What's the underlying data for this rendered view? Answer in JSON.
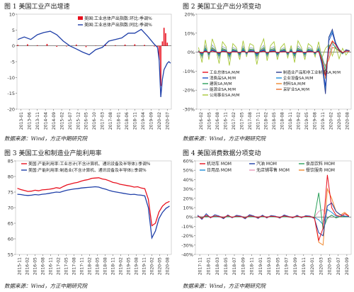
{
  "chart_data": [
    {
      "type": "bar",
      "title": "图 1   美国工业产出增速",
      "source": "数据来源：Wind，方正中期研究院",
      "ylim": [
        -20,
        10
      ],
      "yticks": [
        -20,
        -15,
        -10,
        -5,
        0,
        5,
        10
      ],
      "xtick_labels": [
        "2013-01",
        "2013-06",
        "2013-11",
        "2014-04",
        "2014-09",
        "2015-02",
        "2015-07",
        "2015-12",
        "2016-05",
        "2016-10",
        "2017-03",
        "2017-08",
        "2018-01",
        "2018-06",
        "2018-11",
        "2019-04",
        "2019-09",
        "2020-02",
        "2020-07"
      ],
      "legend": [
        "美国:工业总体产出指数:环比:季调%",
        "美国:工业总体产出指数:同比:季调%"
      ],
      "colors": {
        "bar": "#e8101e",
        "line": "#1f3fa8"
      },
      "series": [
        {
          "name": "美国:工业总体产出指数:环比:季调%",
          "kind": "bar",
          "x": [
            0,
            6,
            12,
            18,
            24,
            30,
            36,
            42,
            48,
            54,
            60,
            66,
            72,
            78,
            84,
            86,
            87,
            88,
            89,
            90,
            91,
            92
          ],
          "values": [
            0.3,
            0.5,
            0.2,
            0.6,
            -0.3,
            -0.2,
            0.4,
            -0.4,
            0.1,
            0.3,
            0.2,
            0.4,
            0.5,
            0.3,
            -0.2,
            -0.3,
            -4.5,
            -12.7,
            1.4,
            5.7,
            4.0,
            1.0
          ]
        },
        {
          "name": "美国:工业总体产出指数:同比:季调%",
          "kind": "line",
          "x": [
            0,
            4,
            8,
            12,
            16,
            20,
            24,
            28,
            32,
            36,
            40,
            44,
            48,
            52,
            56,
            60,
            64,
            68,
            72,
            76,
            80,
            84,
            86,
            87,
            88,
            89,
            90,
            91,
            92,
            93,
            94
          ],
          "values": [
            2.0,
            2.8,
            2.0,
            3.5,
            4.2,
            4.6,
            3.5,
            1.5,
            0.0,
            -1.0,
            -2.0,
            -2.8,
            -1.2,
            -0.5,
            1.5,
            2.0,
            2.5,
            4.0,
            4.0,
            5.2,
            3.0,
            0.5,
            -0.5,
            -4.5,
            -16.2,
            -10.5,
            -7.5,
            -6.5,
            -5.5,
            -5.0,
            -5.5
          ]
        }
      ]
    },
    {
      "type": "line",
      "title": "图 2   美国工业产出分项变动",
      "source": "数据来源：Wind，方正中期研究院",
      "ylim": [
        -30,
        20
      ],
      "yticks": [
        "20%",
        "10%",
        "0%",
        "-10%",
        "-20%",
        "-30%"
      ],
      "xtick_labels": [
        "2016-02",
        "2016-05",
        "2016-08",
        "2016-11",
        "2017-02",
        "2017-05",
        "2017-08",
        "2017-11",
        "2018-02",
        "2018-05",
        "2018-08",
        "2018-11",
        "2019-02",
        "2019-05",
        "2019-08",
        "2019-11",
        "2020-02",
        "2020-05",
        "2020-08"
      ],
      "legend": [
        "工业总体SA,M/M",
        "制造业产品和非工业制造SA,M/M",
        "消费品SA,M/M",
        "企业设备SA,M/M",
        "建筑SA,M/M",
        "材料SA,M/M",
        "能源业SA,M/M",
        "采矿业SA,M/M",
        "公用事业SA,M/M"
      ],
      "series": [
        {
          "name": "工业总体SA,M/M",
          "color": "#e8101e",
          "values": [
            0.3,
            -0.4,
            0.5,
            -0.2,
            0.6,
            0.1,
            -0.3,
            0.4,
            0.2,
            -0.5,
            0.3,
            0.1,
            -0.2,
            0.4,
            -0.1,
            0.2,
            0.3,
            -0.4,
            0.1,
            0.5,
            -0.3,
            0.2,
            0.4,
            -0.2,
            0.1,
            0.3,
            -0.1,
            0.2,
            -0.3,
            0.4,
            0.1,
            -0.2,
            0.3,
            0.2,
            -0.1,
            0.4,
            -4.5,
            -12.5,
            1.4,
            5.7,
            3.9,
            1.0,
            -0.3,
            0.6,
            0.5
          ]
        },
        {
          "name": "制造业产品和非工业制造SA,M/M",
          "color": "#2b3b8f",
          "values": [
            0.2,
            -0.6,
            0.8,
            -0.4,
            0.9,
            0.2,
            -0.7,
            0.6,
            0.3,
            -0.9,
            0.5,
            0.2,
            -0.4,
            0.7,
            -0.2,
            0.5,
            0.4,
            -0.8,
            0.2,
            0.9,
            -0.5,
            0.4,
            0.6,
            -0.4,
            0.2,
            0.5,
            -0.3,
            0.4,
            -0.6,
            0.7,
            0.2,
            -0.4,
            0.5,
            0.3,
            -0.2,
            0.6,
            -6.0,
            -22.0,
            8.0,
            12.0,
            4.5,
            1.5,
            -0.5,
            1.0,
            0.8
          ]
        },
        {
          "name": "消费品SA,M/M",
          "color": "#1a4fc8",
          "values": [
            0.4,
            -0.8,
            1.0,
            -0.6,
            1.1,
            0.4,
            -0.9,
            0.8,
            0.5,
            -1.1,
            0.7,
            0.4,
            -0.6,
            0.9,
            -0.4,
            0.7,
            0.6,
            -1.0,
            0.4,
            1.1,
            -0.7,
            0.6,
            0.8,
            -0.6,
            0.4,
            0.7,
            -0.5,
            0.6,
            -0.8,
            0.9,
            0.4,
            -0.6,
            0.7,
            0.5,
            -0.4,
            0.8,
            -5.0,
            -18.0,
            6.0,
            10.0,
            4.0,
            1.0,
            -0.4,
            0.8,
            0.6
          ]
        },
        {
          "name": "企业设备SA,M/M",
          "color": "#1f8fd8",
          "values": [
            0.5,
            -1.2,
            1.4,
            -0.8,
            1.5,
            0.6,
            -1.3,
            1.2,
            0.7,
            -1.5,
            1.0,
            0.6,
            -0.9,
            1.3,
            -0.6,
            1.0,
            0.9,
            -1.4,
            0.6,
            1.5,
            -1.0,
            0.9,
            1.2,
            -0.9,
            0.6,
            1.0,
            -0.7,
            0.9,
            -1.2,
            1.3,
            0.6,
            -0.9,
            1.0,
            0.8,
            -0.6,
            1.2,
            -7.0,
            -20.0,
            7.5,
            11.0,
            5.0,
            1.2,
            -0.6,
            0.9,
            0.7
          ]
        },
        {
          "name": "建筑SA,M/M",
          "color": "#2aa05a",
          "values": [
            0.8,
            -2.0,
            2.2,
            -1.5,
            2.4,
            1.0,
            -2.1,
            1.9,
            1.2,
            -2.4,
            1.6,
            1.0,
            -1.5,
            2.1,
            -1.0,
            1.6,
            1.4,
            -2.2,
            1.0,
            2.4,
            -1.6,
            1.4,
            1.9,
            -1.5,
            1.0,
            1.6,
            -1.2,
            1.4,
            -2.0,
            2.1,
            1.0,
            -1.5,
            1.6,
            1.2,
            -1.0,
            1.9,
            -3.0,
            -10.0,
            3.0,
            5.0,
            2.0,
            0.8,
            -0.8,
            1.0,
            0.6
          ]
        },
        {
          "name": "材料SA,M/M",
          "color": "#f08a30",
          "values": [
            0.3,
            -0.5,
            0.6,
            -0.3,
            0.7,
            0.2,
            -0.5,
            0.5,
            0.3,
            -0.6,
            0.4,
            0.2,
            -0.3,
            0.5,
            -0.2,
            0.4,
            0.3,
            -0.5,
            0.2,
            0.6,
            -0.4,
            0.3,
            0.5,
            -0.3,
            0.2,
            0.4,
            -0.2,
            0.3,
            -0.5,
            0.5,
            0.2,
            -0.3,
            0.4,
            0.3,
            -0.2,
            0.5,
            -4.0,
            -14.0,
            2.0,
            6.0,
            4.0,
            1.5,
            -0.3,
            0.7,
            0.5
          ]
        },
        {
          "name": "能源业SA,M/M",
          "color": "#9aa8c8",
          "values": [
            1.0,
            -3.0,
            3.5,
            -2.5,
            3.8,
            1.5,
            -3.2,
            3.0,
            2.0,
            -3.6,
            2.5,
            1.6,
            -2.3,
            3.2,
            -1.6,
            2.4,
            2.1,
            -3.4,
            1.5,
            3.6,
            -2.4,
            2.1,
            2.9,
            -2.3,
            1.5,
            2.4,
            -1.8,
            2.1,
            -3.0,
            3.2,
            1.5,
            -2.3,
            2.4,
            1.8,
            -1.5,
            2.9,
            -2.0,
            -8.0,
            -2.0,
            4.0,
            3.0,
            1.0,
            -1.0,
            1.5,
            0.8
          ]
        },
        {
          "name": "采矿业SA,M/M",
          "color": "#e86f2a",
          "values": [
            0.6,
            -1.5,
            1.8,
            -1.2,
            1.9,
            0.8,
            -1.6,
            1.5,
            1.0,
            -1.8,
            1.2,
            0.8,
            -1.1,
            1.6,
            -0.8,
            1.2,
            1.0,
            -1.7,
            0.8,
            1.8,
            -1.2,
            1.0,
            1.5,
            -1.1,
            0.8,
            1.2,
            -0.9,
            1.0,
            -1.5,
            1.6,
            0.8,
            -1.1,
            1.2,
            0.9,
            -0.8,
            1.5,
            -3.5,
            -7.0,
            -4.0,
            2.5,
            2.0,
            0.5,
            -0.8,
            1.2,
            0.9
          ]
        },
        {
          "name": "公用事业SA,M/M",
          "color": "#a8c838",
          "values": [
            2.5,
            -5.5,
            6.5,
            -4.0,
            7.0,
            2.0,
            -6.0,
            5.5,
            3.0,
            -7.0,
            4.5,
            2.5,
            -4.0,
            6.0,
            -2.5,
            4.5,
            3.5,
            -6.5,
            2.5,
            7.0,
            -4.5,
            3.5,
            5.5,
            -4.0,
            2.5,
            4.5,
            -3.0,
            3.5,
            -5.5,
            6.0,
            2.5,
            -4.0,
            4.5,
            3.0,
            -2.5,
            5.5,
            -3.0,
            2.0,
            4.0,
            -2.0,
            3.0,
            -3.5,
            2.0,
            -1.5,
            1.0
          ]
        }
      ]
    },
    {
      "type": "line",
      "title": "图 3   美国工业和制造业产能利用率",
      "source": "数据来源：Wind，方正中期研究院",
      "ylim": [
        55,
        85
      ],
      "yticks": [
        55,
        60,
        65,
        70,
        75,
        80,
        85
      ],
      "xtick_labels": [
        "2015-11",
        "2016-02",
        "2016-05",
        "2016-08",
        "2016-11",
        "2017-02",
        "2017-05",
        "2017-08",
        "2017-11",
        "2018-02",
        "2018-05",
        "2018-08",
        "2018-11",
        "2019-02",
        "2019-05",
        "2019-08",
        "2019-11",
        "2020-02",
        "2020-05",
        "2020-08"
      ],
      "legend": [
        "美国:产能利用率:工业总计(不含计算机、通讯设备及半导体):季调%",
        "美国:产能利用率:制造业(不含计算机、通讯设备及半导体):季调%"
      ],
      "series": [
        {
          "name": "美国:产能利用率:工业总计(不含计算机、通讯设备及半导体):季调%",
          "color": "#e8101e",
          "values": [
            76.2,
            75.8,
            75.5,
            75.2,
            75.3,
            75.6,
            75.4,
            75.7,
            75.8,
            75.9,
            76.1,
            76.4,
            76.2,
            76.8,
            77.3,
            77.6,
            77.9,
            78.1,
            78.5,
            78.8,
            79.0,
            79.4,
            79.5,
            79.6,
            79.2,
            79.0,
            78.6,
            78.1,
            77.9,
            77.5,
            77.3,
            77.1,
            76.9,
            76.6,
            76.7,
            76.3,
            76.1,
            72.7,
            64.2,
            65.0,
            68.6,
            70.5,
            71.5,
            72.0
          ]
        },
        {
          "name": "美国:产能利用率:制造业(不含计算机、通讯设备及半导体):季调%",
          "color": "#1f3fa8",
          "values": [
            74.3,
            74.2,
            74.0,
            73.9,
            74.0,
            74.2,
            74.1,
            74.3,
            74.4,
            74.6,
            74.8,
            75.0,
            74.9,
            75.3,
            75.6,
            75.8,
            76.0,
            76.1,
            76.3,
            76.4,
            76.5,
            76.6,
            76.7,
            76.6,
            76.2,
            75.9,
            75.5,
            75.2,
            75.0,
            74.8,
            74.6,
            74.4,
            74.2,
            74.3,
            74.1,
            74.0,
            73.8,
            70.0,
            60.3,
            62.5,
            66.5,
            68.5,
            69.8,
            70.5
          ]
        }
      ]
    },
    {
      "type": "line",
      "title": "图 4   美国消费数据分项变动",
      "source": "数据来源：Wind，方正中期研究院",
      "ylim": [
        -40,
        60
      ],
      "yticks": [
        "60%",
        "50%",
        "40%",
        "30%",
        "20%",
        "10%",
        "0%",
        "-10%",
        "-20%",
        "-30%",
        "-40%"
      ],
      "xtick_labels": [
        "2017-11",
        "2018-01",
        "2018-03",
        "2018-05",
        "2018-07",
        "2018-09",
        "2018-11",
        "2019-01",
        "2019-03",
        "2019-05",
        "2019-07",
        "2019-09",
        "2019-11",
        "2020-01",
        "2020-03",
        "2020-05",
        "2020-07",
        "2020-09"
      ],
      "legend": [
        "机动车 MOM",
        "汽油 MOM",
        "食品饮料 MOM",
        "日用品 MOM",
        "无店铺零售 MOM",
        "餐饮服务 MOM"
      ],
      "series": [
        {
          "name": "机动车 MOM",
          "color": "#e8101e",
          "values": [
            1.0,
            -1.5,
            1.8,
            -0.5,
            1.2,
            0.3,
            -0.8,
            1.5,
            -0.3,
            0.9,
            0.4,
            -1.0,
            1.2,
            0.5,
            -0.7,
            1.0,
            -0.4,
            0.8,
            0.3,
            -0.6,
            1.1,
            0.2,
            -0.5,
            0.9,
            -0.3,
            0.7,
            0.4,
            -0.8,
            -25.0,
            -12.0,
            45.0,
            10.0,
            2.0,
            0.5,
            3.5,
            1.0
          ]
        },
        {
          "name": "汽油 MOM",
          "color": "#1f3fa8",
          "values": [
            2.0,
            -2.5,
            3.5,
            -1.0,
            2.5,
            1.0,
            -1.8,
            2.2,
            -0.8,
            1.8,
            0.9,
            -2.0,
            2.4,
            1.0,
            -1.5,
            2.0,
            -1.0,
            1.6,
            0.8,
            -1.2,
            2.2,
            0.6,
            -1.0,
            1.8,
            -0.8,
            1.4,
            0.9,
            -1.6,
            -17.0,
            -20.0,
            12.0,
            15.0,
            6.0,
            2.5,
            1.0,
            0.5
          ]
        },
        {
          "name": "食品饮料 MOM",
          "color": "#2aa05a",
          "values": [
            0.5,
            -0.4,
            0.6,
            -0.2,
            0.5,
            0.2,
            -0.3,
            0.4,
            -0.1,
            0.3,
            0.2,
            -0.3,
            0.4,
            0.2,
            -0.2,
            0.3,
            -0.1,
            0.3,
            0.1,
            -0.2,
            0.4,
            0.1,
            -0.2,
            0.3,
            -0.1,
            0.2,
            0.1,
            -0.3,
            26.0,
            -13.0,
            -1.0,
            2.0,
            -1.0,
            0.5,
            0.3,
            0.2
          ]
        },
        {
          "name": "日用品 MOM",
          "color": "#1f8fd8",
          "values": [
            0.3,
            -0.5,
            0.7,
            -0.2,
            0.4,
            0.1,
            -0.4,
            0.5,
            -0.2,
            0.3,
            0.2,
            -0.3,
            0.5,
            0.1,
            -0.2,
            0.4,
            -0.1,
            0.3,
            0.2,
            -0.2,
            0.4,
            0.1,
            -0.3,
            0.3,
            -0.2,
            0.3,
            0.1,
            -0.4,
            -3.0,
            -8.0,
            8.0,
            5.0,
            1.0,
            0.4,
            0.5,
            0.2
          ]
        },
        {
          "name": "无店铺零售 MOM",
          "color": "#e89ab8",
          "values": [
            1.0,
            0.5,
            0.8,
            0.3,
            0.9,
            0.6,
            0.4,
            1.2,
            -0.5,
            1.0,
            0.8,
            0.2,
            1.5,
            0.3,
            0.6,
            1.1,
            0.4,
            0.9,
            0.7,
            0.2,
            1.3,
            0.5,
            0.4,
            1.0,
            0.3,
            0.8,
            0.6,
            0.1,
            6.0,
            8.0,
            -2.0,
            2.0,
            -1.0,
            0.5,
            0.8,
            0.4
          ]
        },
        {
          "name": "餐饮服务 MOM",
          "color": "#f08a30",
          "values": [
            0.6,
            -0.3,
            0.7,
            0.1,
            0.5,
            0.3,
            -0.2,
            0.6,
            0.0,
            0.4,
            0.3,
            -0.1,
            0.6,
            0.2,
            -0.1,
            0.5,
            0.1,
            0.4,
            0.2,
            -0.1,
            0.5,
            0.2,
            -0.1,
            0.4,
            0.0,
            0.3,
            0.2,
            -0.2,
            -27.0,
            -30.0,
            30.0,
            20.0,
            6.0,
            2.0,
            5.0,
            1.0
          ]
        }
      ]
    }
  ]
}
